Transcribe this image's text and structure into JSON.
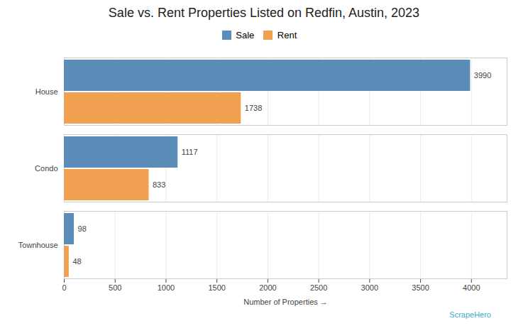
{
  "chart_data": {
    "type": "bar",
    "orientation": "horizontal",
    "title": "Sale vs. Rent Properties Listed on Redfin, Austin, 2023",
    "categories": [
      "House",
      "Condo",
      "Townhouse"
    ],
    "series": [
      {
        "name": "Sale",
        "color": "#5b8db8",
        "values": [
          3990,
          1117,
          98
        ]
      },
      {
        "name": "Rent",
        "color": "#f0a050",
        "values": [
          1738,
          833,
          48
        ]
      }
    ],
    "xlabel": "Number of Properties",
    "xlim": [
      0,
      4350
    ],
    "xticks": [
      0,
      500,
      1000,
      1500,
      2000,
      2500,
      3000,
      3500,
      4000
    ],
    "grid": true,
    "data_labels": true,
    "legend": "top",
    "annotations": [
      {
        "text": "ScrapeHero",
        "color": "#3aabcb"
      }
    ]
  }
}
